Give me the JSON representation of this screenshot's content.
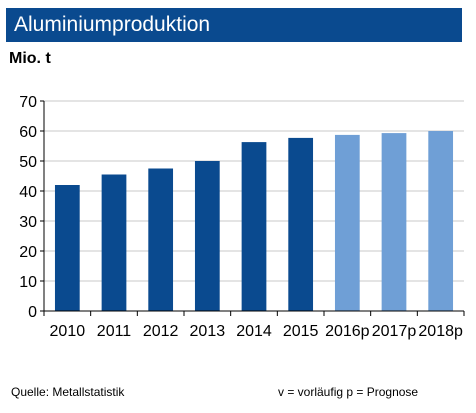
{
  "chart_data": {
    "type": "bar",
    "title": "Aluminiumproduktion",
    "ylabel": "Mio. t",
    "xlabel": "",
    "categories": [
      "2010",
      "2011",
      "2012",
      "2013",
      "2014",
      "2015",
      "2016p",
      "2017p",
      "2018p"
    ],
    "values": [
      42,
      45.5,
      47.5,
      50,
      56.3,
      57.7,
      58.7,
      59.3,
      60
    ],
    "forecast": [
      false,
      false,
      false,
      false,
      false,
      false,
      true,
      true,
      true
    ],
    "ylim": [
      0,
      70
    ],
    "yticks": [
      0,
      10,
      20,
      30,
      40,
      50,
      60,
      70
    ],
    "grid": true,
    "colors": {
      "actual": "#0a4a8f",
      "forecast": "#6f9fd6",
      "grid": "#c8c8c8",
      "title_bg": "#0a4a8f"
    }
  },
  "footer": {
    "source": "Quelle: Metallstatistik",
    "note": "v = vorläufig  p = Prognose"
  }
}
